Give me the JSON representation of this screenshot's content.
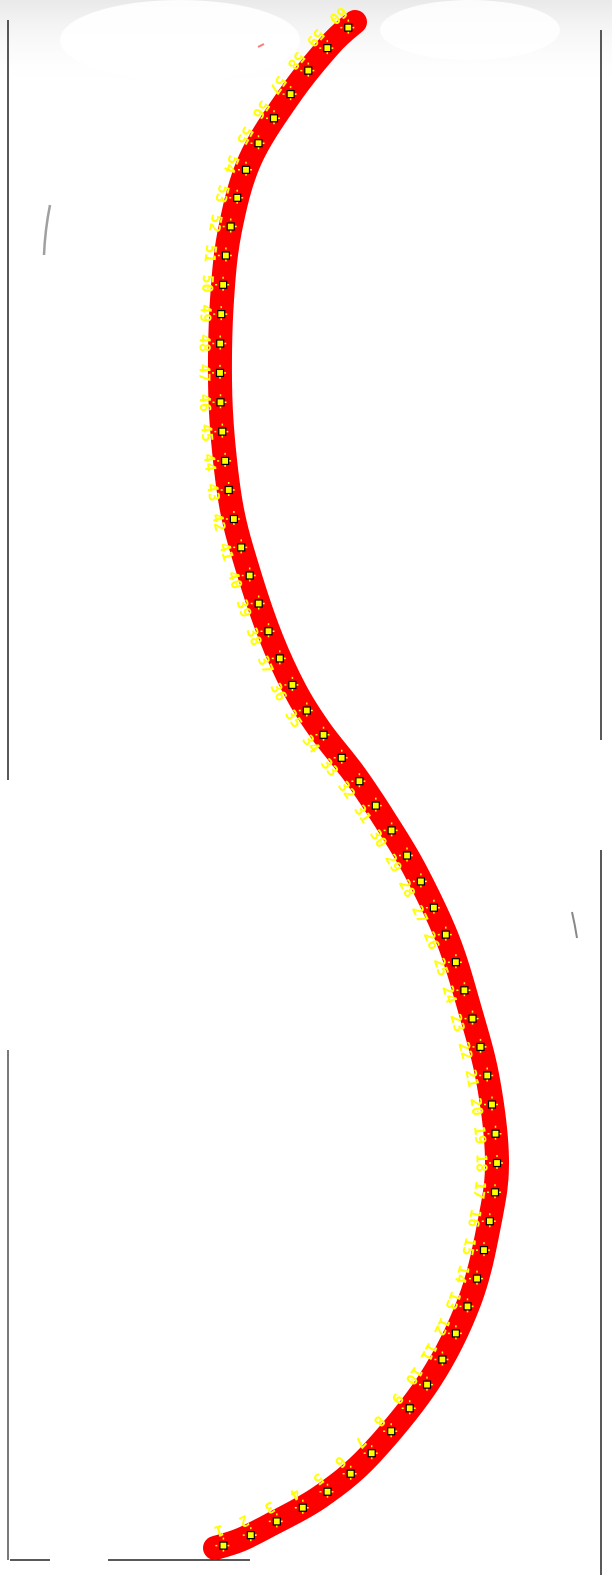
{
  "curve": {
    "stroke_color": "#ff0000",
    "marker_fill": "#ffff00",
    "marker_border": "#000000",
    "label_color": "#ffff00",
    "marker_icon": "crosshair-square-icon"
  },
  "points": [
    {
      "id": "1"
    },
    {
      "id": "2"
    },
    {
      "id": "3"
    },
    {
      "id": "4"
    },
    {
      "id": "5"
    },
    {
      "id": "6"
    },
    {
      "id": "7"
    },
    {
      "id": "8"
    },
    {
      "id": "9"
    },
    {
      "id": "10"
    },
    {
      "id": "11"
    },
    {
      "id": "12"
    },
    {
      "id": "13"
    },
    {
      "id": "14"
    },
    {
      "id": "15"
    },
    {
      "id": "16"
    },
    {
      "id": "17"
    },
    {
      "id": "18"
    },
    {
      "id": "19"
    },
    {
      "id": "20"
    },
    {
      "id": "21"
    },
    {
      "id": "22"
    },
    {
      "id": "23"
    },
    {
      "id": "24"
    },
    {
      "id": "25"
    },
    {
      "id": "26"
    },
    {
      "id": "27"
    },
    {
      "id": "28"
    },
    {
      "id": "29"
    },
    {
      "id": "30"
    },
    {
      "id": "31"
    },
    {
      "id": "32"
    },
    {
      "id": "33"
    },
    {
      "id": "34"
    },
    {
      "id": "35"
    },
    {
      "id": "36"
    },
    {
      "id": "37"
    },
    {
      "id": "38"
    },
    {
      "id": "39"
    },
    {
      "id": "40"
    },
    {
      "id": "41"
    },
    {
      "id": "42"
    },
    {
      "id": "43"
    },
    {
      "id": "44"
    },
    {
      "id": "45"
    },
    {
      "id": "46"
    },
    {
      "id": "47"
    },
    {
      "id": "48"
    },
    {
      "id": "49"
    },
    {
      "id": "50"
    },
    {
      "id": "51"
    },
    {
      "id": "52"
    },
    {
      "id": "53"
    },
    {
      "id": "54"
    },
    {
      "id": "55"
    },
    {
      "id": "56"
    },
    {
      "id": "57"
    },
    {
      "id": "58"
    },
    {
      "id": "59"
    },
    {
      "id": "60"
    }
  ]
}
